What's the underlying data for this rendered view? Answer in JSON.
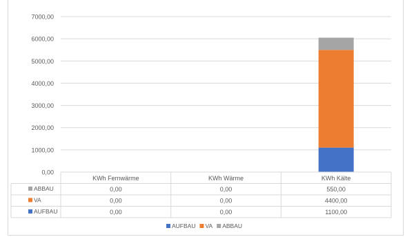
{
  "chart_data": {
    "type": "bar",
    "stacked": true,
    "categories": [
      "KWh Fernwärme",
      "KWh Wärme",
      "KWh Kälte"
    ],
    "series": [
      {
        "name": "AUFBAU",
        "color": "#4472c4",
        "values": [
          0,
          0,
          1100
        ],
        "labels": [
          "0,00",
          "0,00",
          "1100,00"
        ]
      },
      {
        "name": "VA",
        "color": "#ed7d31",
        "values": [
          0,
          0,
          4400
        ],
        "labels": [
          "0,00",
          "0,00",
          "4400,00"
        ]
      },
      {
        "name": "ABBAU",
        "color": "#a5a5a5",
        "values": [
          0,
          0,
          550
        ],
        "labels": [
          "0,00",
          "0,00",
          "550,00"
        ]
      }
    ],
    "ylim": [
      0,
      7000
    ],
    "yticks": [
      0,
      1000,
      2000,
      3000,
      4000,
      5000,
      6000,
      7000
    ],
    "ytick_labels": [
      "0,00",
      "1000,00",
      "2000,00",
      "3000,00",
      "4000,00",
      "5000,00",
      "6000,00",
      "7000,00"
    ],
    "data_table": true,
    "legend": "bottom",
    "grid": true
  }
}
